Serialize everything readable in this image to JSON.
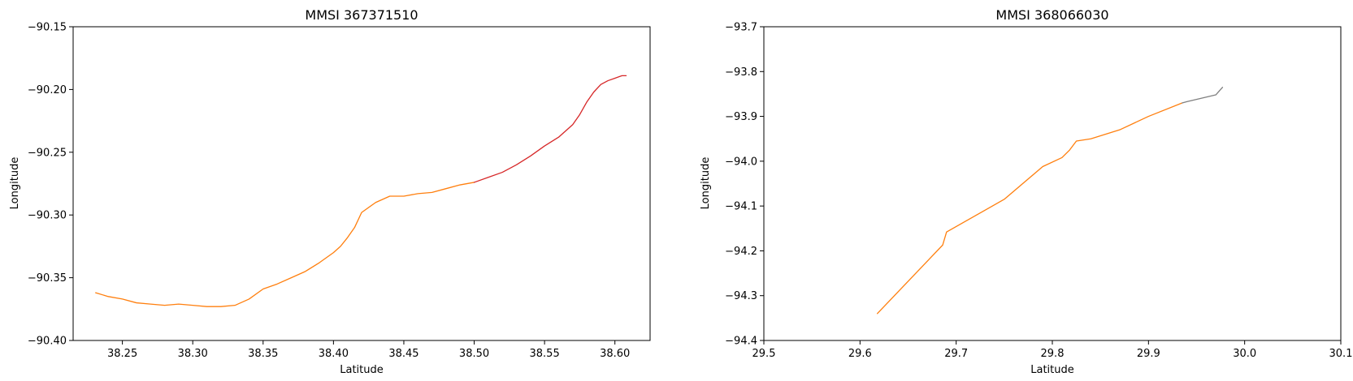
{
  "chart_data": [
    {
      "type": "line",
      "title": "MMSI 367371510",
      "xlabel": "Latitude",
      "ylabel": "Longitude",
      "xlim": [
        38.215,
        38.625
      ],
      "ylim": [
        -90.4,
        -90.15
      ],
      "xticks": [
        {
          "v": 38.25,
          "label": "38.25"
        },
        {
          "v": 38.3,
          "label": "38.30"
        },
        {
          "v": 38.35,
          "label": "38.35"
        },
        {
          "v": 38.4,
          "label": "38.40"
        },
        {
          "v": 38.45,
          "label": "38.45"
        },
        {
          "v": 38.5,
          "label": "38.50"
        },
        {
          "v": 38.55,
          "label": "38.55"
        },
        {
          "v": 38.6,
          "label": "38.60"
        }
      ],
      "yticks": [
        {
          "v": -90.4,
          "label": "−90.40"
        },
        {
          "v": -90.35,
          "label": "−90.35"
        },
        {
          "v": -90.3,
          "label": "−90.30"
        },
        {
          "v": -90.25,
          "label": "−90.25"
        },
        {
          "v": -90.2,
          "label": "−90.20"
        },
        {
          "v": -90.15,
          "label": "−90.15"
        }
      ],
      "grid": false,
      "series": [
        {
          "color": "#ff7f0e",
          "x": [
            38.231,
            38.24,
            38.25,
            38.26,
            38.27,
            38.28,
            38.29,
            38.3,
            38.31,
            38.32,
            38.33,
            38.34,
            38.35,
            38.36,
            38.37,
            38.38,
            38.39,
            38.4,
            38.405,
            38.41,
            38.415,
            38.42,
            38.43,
            38.44,
            38.45,
            38.46,
            38.47,
            38.48,
            38.49,
            38.5
          ],
          "y": [
            -90.362,
            -90.365,
            -90.367,
            -90.37,
            -90.371,
            -90.372,
            -90.371,
            -90.372,
            -90.373,
            -90.373,
            -90.372,
            -90.367,
            -90.359,
            -90.355,
            -90.35,
            -90.345,
            -90.338,
            -90.33,
            -90.325,
            -90.318,
            -90.31,
            -90.298,
            -90.29,
            -90.285,
            -90.285,
            -90.283,
            -90.282,
            -90.279,
            -90.276,
            -90.274
          ]
        },
        {
          "color": "#d62728",
          "x": [
            38.5,
            38.51,
            38.52,
            38.53,
            38.54,
            38.55,
            38.56,
            38.57,
            38.575,
            38.58,
            38.585,
            38.59,
            38.595,
            38.6,
            38.605,
            38.608
          ],
          "y": [
            -90.274,
            -90.27,
            -90.266,
            -90.26,
            -90.253,
            -90.245,
            -90.238,
            -90.228,
            -90.22,
            -90.21,
            -90.202,
            -90.196,
            -90.193,
            -90.191,
            -90.189,
            -90.189
          ]
        }
      ]
    },
    {
      "type": "line",
      "title": "MMSI 368066030",
      "xlabel": "Latitude",
      "ylabel": "Longitude",
      "xlim": [
        29.5,
        30.1
      ],
      "ylim": [
        -94.4,
        -93.7
      ],
      "xticks": [
        {
          "v": 29.5,
          "label": "29.5"
        },
        {
          "v": 29.6,
          "label": "29.6"
        },
        {
          "v": 29.7,
          "label": "29.7"
        },
        {
          "v": 29.8,
          "label": "29.8"
        },
        {
          "v": 29.9,
          "label": "29.9"
        },
        {
          "v": 30.0,
          "label": "30.0"
        },
        {
          "v": 30.1,
          "label": "30.1"
        }
      ],
      "yticks": [
        {
          "v": -94.4,
          "label": "−94.4"
        },
        {
          "v": -94.3,
          "label": "−94.3"
        },
        {
          "v": -94.2,
          "label": "−94.2"
        },
        {
          "v": -94.1,
          "label": "−94.1"
        },
        {
          "v": -94.0,
          "label": "−94.0"
        },
        {
          "v": -93.9,
          "label": "−93.9"
        },
        {
          "v": -93.8,
          "label": "−93.8"
        },
        {
          "v": -93.7,
          "label": "−93.7"
        }
      ],
      "grid": false,
      "series": [
        {
          "color": "#ff7f0e",
          "x": [
            29.618,
            29.686,
            29.69,
            29.75,
            29.79,
            29.81,
            29.818,
            29.825,
            29.84,
            29.87,
            29.9,
            29.935
          ],
          "y": [
            -94.34,
            -94.187,
            -94.158,
            -94.085,
            -94.012,
            -93.992,
            -93.975,
            -93.955,
            -93.95,
            -93.93,
            -93.9,
            -93.87
          ]
        },
        {
          "color": "#7f7f7f",
          "x": [
            29.935,
            29.94,
            29.97,
            29.977
          ],
          "y": [
            -93.87,
            -93.867,
            -93.852,
            -93.835
          ]
        }
      ]
    }
  ]
}
